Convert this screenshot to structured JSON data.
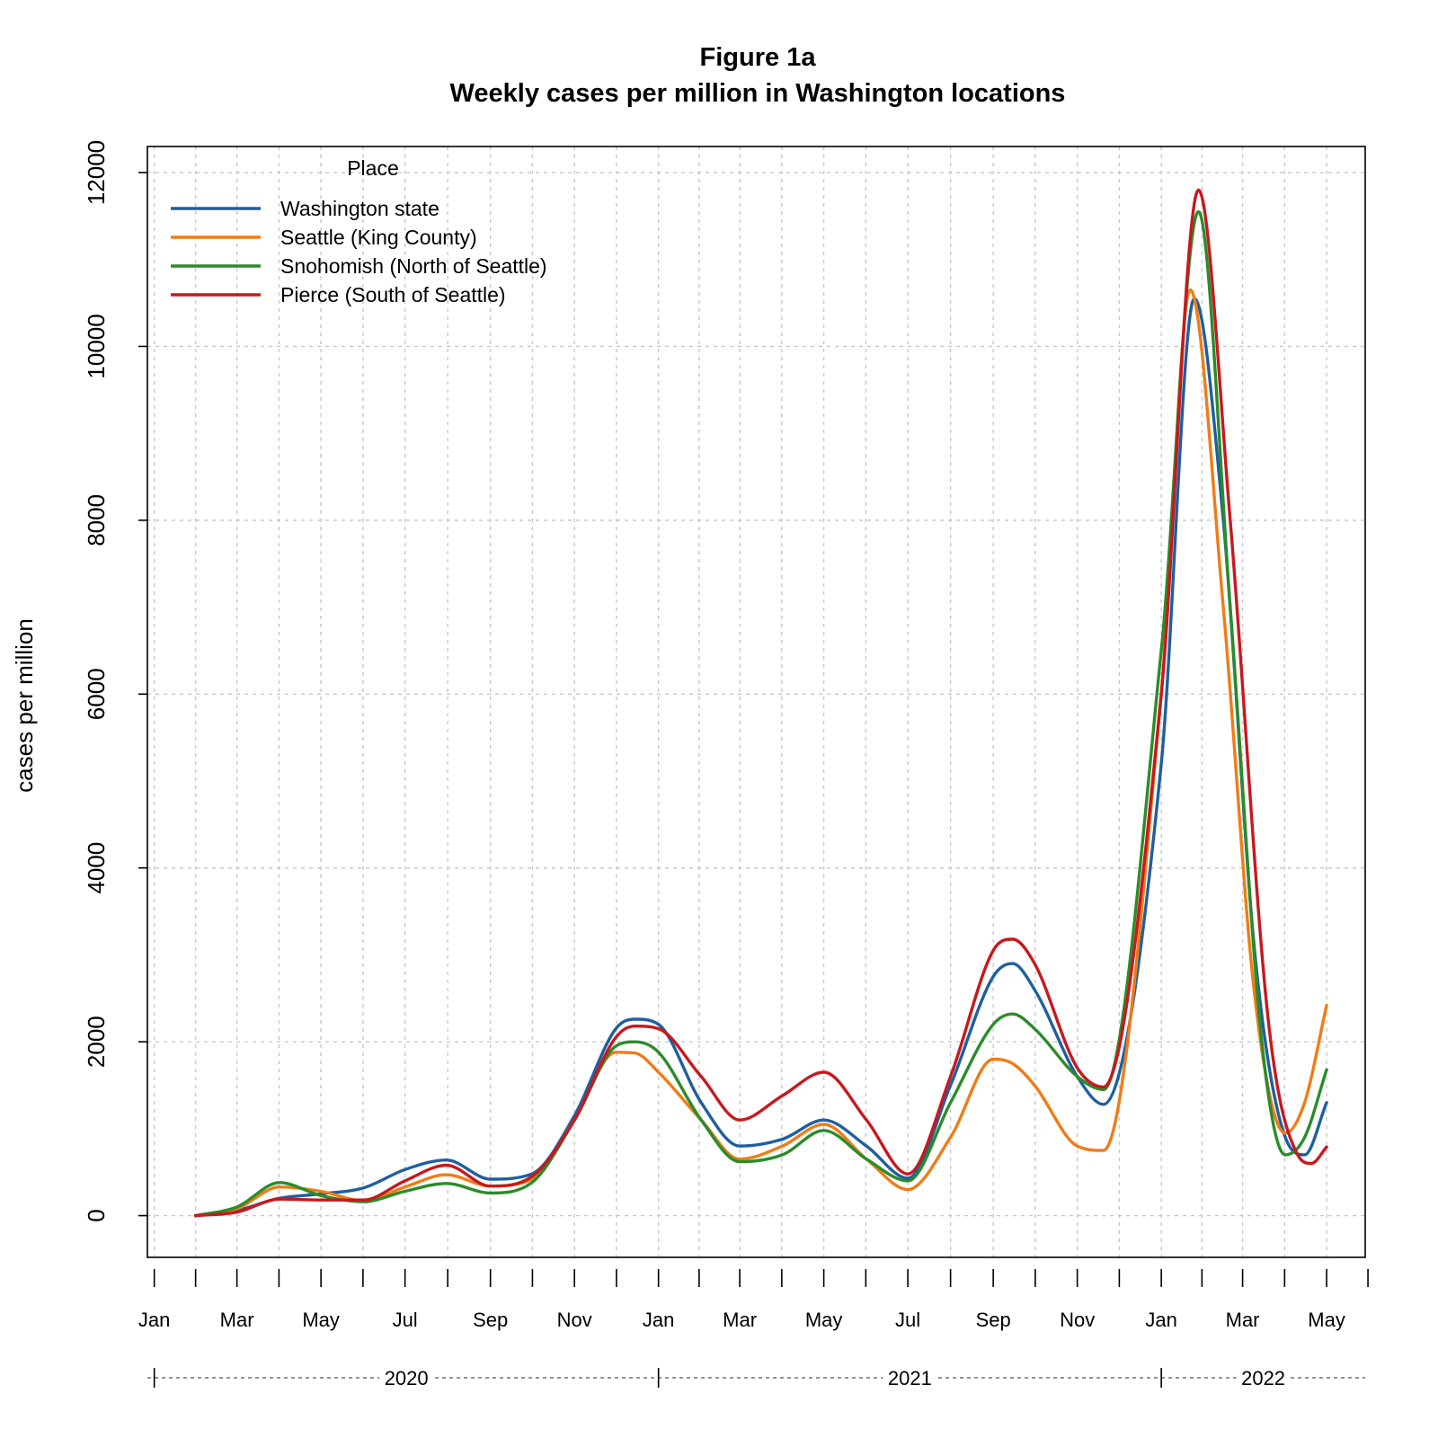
{
  "chart_data": {
    "type": "line",
    "title": "Figure 1a",
    "subtitle": "Weekly cases per million in Washington locations",
    "xlabel": "",
    "ylabel": "cases per million",
    "ylim": [
      -480,
      12300
    ],
    "xlim": [
      "2019-12-27",
      "2022-05-29"
    ],
    "yticks": [
      0,
      2000,
      4000,
      6000,
      8000,
      10000,
      12000
    ],
    "xticks": [
      {
        "date": "2020-01-01",
        "label": "Jan"
      },
      {
        "date": "2020-03-01",
        "label": "Mar"
      },
      {
        "date": "2020-05-01",
        "label": "May"
      },
      {
        "date": "2020-07-01",
        "label": "Jul"
      },
      {
        "date": "2020-09-01",
        "label": "Sep"
      },
      {
        "date": "2020-11-01",
        "label": "Nov"
      },
      {
        "date": "2021-01-01",
        "label": "Jan"
      },
      {
        "date": "2021-03-01",
        "label": "Mar"
      },
      {
        "date": "2021-05-01",
        "label": "May"
      },
      {
        "date": "2021-07-01",
        "label": "Jul"
      },
      {
        "date": "2021-09-01",
        "label": "Sep"
      },
      {
        "date": "2021-11-01",
        "label": "Nov"
      },
      {
        "date": "2022-01-01",
        "label": "Jan"
      },
      {
        "date": "2022-03-01",
        "label": "Mar"
      },
      {
        "date": "2022-05-01",
        "label": "May"
      }
    ],
    "years": [
      {
        "label": "2020",
        "start": "2020-01-01",
        "end": "2021-01-01"
      },
      {
        "label": "2021",
        "start": "2021-01-01",
        "end": "2022-01-01"
      },
      {
        "label": "2022",
        "start": "2022-01-01",
        "end": "2022-05-29"
      }
    ],
    "grid": true,
    "legend": {
      "title": "Place",
      "position": "top-left"
    },
    "series": [
      {
        "name": "Washington state",
        "color": "#1f5fa0",
        "points": [
          [
            "2020-01-31",
            0
          ],
          [
            "2020-03-01",
            60
          ],
          [
            "2020-04-01",
            200
          ],
          [
            "2020-05-01",
            250
          ],
          [
            "2020-06-01",
            320
          ],
          [
            "2020-07-01",
            530
          ],
          [
            "2020-07-31",
            640
          ],
          [
            "2020-09-01",
            420
          ],
          [
            "2020-10-01",
            480
          ],
          [
            "2020-11-01",
            1150
          ],
          [
            "2020-12-01",
            2150
          ],
          [
            "2020-12-15",
            2260
          ],
          [
            "2021-01-01",
            2200
          ],
          [
            "2021-02-01",
            1300
          ],
          [
            "2021-03-01",
            800
          ],
          [
            "2021-04-01",
            880
          ],
          [
            "2021-05-01",
            1100
          ],
          [
            "2021-06-01",
            800
          ],
          [
            "2021-07-01",
            430
          ],
          [
            "2021-08-01",
            1500
          ],
          [
            "2021-09-01",
            2750
          ],
          [
            "2021-09-15",
            2900
          ],
          [
            "2021-10-01",
            2600
          ],
          [
            "2021-11-01",
            1600
          ],
          [
            "2021-11-20",
            1280
          ],
          [
            "2022-01-01",
            5200
          ],
          [
            "2022-01-25",
            10550
          ],
          [
            "2022-02-15",
            8000
          ],
          [
            "2022-03-10",
            3000
          ],
          [
            "2022-04-01",
            900
          ],
          [
            "2022-04-15",
            700
          ],
          [
            "2022-05-01",
            1300
          ]
        ]
      },
      {
        "name": "Seattle (King County)",
        "color": "#f07c16",
        "points": [
          [
            "2020-01-31",
            0
          ],
          [
            "2020-03-01",
            80
          ],
          [
            "2020-04-01",
            330
          ],
          [
            "2020-05-01",
            280
          ],
          [
            "2020-06-01",
            170
          ],
          [
            "2020-07-01",
            330
          ],
          [
            "2020-07-31",
            470
          ],
          [
            "2020-09-01",
            340
          ],
          [
            "2020-10-01",
            420
          ],
          [
            "2020-11-01",
            1100
          ],
          [
            "2020-12-01",
            1880
          ],
          [
            "2020-12-15",
            1870
          ],
          [
            "2021-01-01",
            1650
          ],
          [
            "2021-02-01",
            1100
          ],
          [
            "2021-03-01",
            650
          ],
          [
            "2021-04-01",
            800
          ],
          [
            "2021-05-01",
            1050
          ],
          [
            "2021-06-01",
            650
          ],
          [
            "2021-07-01",
            300
          ],
          [
            "2021-08-01",
            900
          ],
          [
            "2021-09-01",
            1800
          ],
          [
            "2021-09-15",
            1750
          ],
          [
            "2021-10-01",
            1500
          ],
          [
            "2021-11-01",
            800
          ],
          [
            "2021-11-20",
            750
          ],
          [
            "2022-01-01",
            6000
          ],
          [
            "2022-01-22",
            10650
          ],
          [
            "2022-02-15",
            7000
          ],
          [
            "2022-03-10",
            2500
          ],
          [
            "2022-04-01",
            950
          ],
          [
            "2022-04-15",
            1300
          ],
          [
            "2022-05-01",
            2420
          ]
        ]
      },
      {
        "name": "Snohomish (North of Seattle)",
        "color": "#2a8c2a",
        "points": [
          [
            "2020-01-31",
            0
          ],
          [
            "2020-03-01",
            100
          ],
          [
            "2020-04-01",
            380
          ],
          [
            "2020-05-01",
            230
          ],
          [
            "2020-06-01",
            160
          ],
          [
            "2020-07-01",
            280
          ],
          [
            "2020-07-31",
            370
          ],
          [
            "2020-09-01",
            260
          ],
          [
            "2020-10-01",
            380
          ],
          [
            "2020-11-01",
            1100
          ],
          [
            "2020-12-01",
            1950
          ],
          [
            "2020-12-15",
            2000
          ],
          [
            "2021-01-01",
            1880
          ],
          [
            "2021-02-01",
            1100
          ],
          [
            "2021-03-01",
            620
          ],
          [
            "2021-04-01",
            700
          ],
          [
            "2021-05-01",
            980
          ],
          [
            "2021-06-01",
            650
          ],
          [
            "2021-07-01",
            400
          ],
          [
            "2021-08-01",
            1300
          ],
          [
            "2021-09-01",
            2200
          ],
          [
            "2021-09-15",
            2320
          ],
          [
            "2021-10-01",
            2150
          ],
          [
            "2021-11-01",
            1600
          ],
          [
            "2021-11-20",
            1450
          ],
          [
            "2022-01-01",
            6500
          ],
          [
            "2022-01-28",
            11550
          ],
          [
            "2022-02-20",
            7000
          ],
          [
            "2022-03-15",
            2000
          ],
          [
            "2022-04-01",
            700
          ],
          [
            "2022-04-15",
            900
          ],
          [
            "2022-05-01",
            1680
          ]
        ]
      },
      {
        "name": "Pierce (South of Seattle)",
        "color": "#c8181e",
        "points": [
          [
            "2020-01-31",
            0
          ],
          [
            "2020-03-01",
            40
          ],
          [
            "2020-04-01",
            190
          ],
          [
            "2020-05-01",
            180
          ],
          [
            "2020-06-01",
            180
          ],
          [
            "2020-07-01",
            400
          ],
          [
            "2020-07-31",
            580
          ],
          [
            "2020-09-01",
            340
          ],
          [
            "2020-10-01",
            450
          ],
          [
            "2020-11-01",
            1100
          ],
          [
            "2020-12-01",
            2050
          ],
          [
            "2020-12-15",
            2180
          ],
          [
            "2021-01-01",
            2150
          ],
          [
            "2021-02-01",
            1600
          ],
          [
            "2021-03-01",
            1100
          ],
          [
            "2021-04-01",
            1380
          ],
          [
            "2021-05-01",
            1650
          ],
          [
            "2021-06-01",
            1100
          ],
          [
            "2021-07-01",
            480
          ],
          [
            "2021-08-01",
            1600
          ],
          [
            "2021-09-01",
            3050
          ],
          [
            "2021-09-15",
            3180
          ],
          [
            "2021-10-01",
            2900
          ],
          [
            "2021-11-01",
            1700
          ],
          [
            "2021-11-20",
            1480
          ],
          [
            "2022-01-01",
            6000
          ],
          [
            "2022-01-28",
            11800
          ],
          [
            "2022-02-20",
            8000
          ],
          [
            "2022-03-20",
            2200
          ],
          [
            "2022-04-10",
            700
          ],
          [
            "2022-04-20",
            600
          ],
          [
            "2022-05-01",
            790
          ]
        ]
      }
    ]
  }
}
